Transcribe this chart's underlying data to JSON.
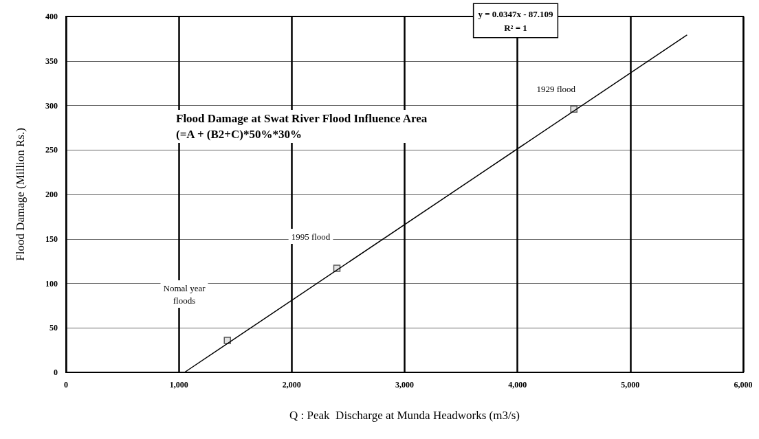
{
  "chart_data": {
    "type": "scatter",
    "title": "Flood Damage at Swat River Flood Influence Area",
    "subtitle": "(=A + (B2+C)*50%*30%",
    "xlabel": "Q : Peak  Discharge at Munda Headworks (m3/s)",
    "ylabel": "Flood Damage (Million Rs.)",
    "series": [
      {
        "x": [
          1430,
          2400,
          4500
        ],
        "values": [
          36,
          117,
          296
        ],
        "color": "#333333",
        "marker": "square"
      },
      {
        "type": "line",
        "x": [
          1050,
          5500
        ],
        "values": [
          0,
          379
        ],
        "color": "#000000",
        "marker": "none",
        "line_style": "solid"
      }
    ],
    "annotations": [
      "Nomal year\nfloods",
      "1995 flood",
      {
        "text": "1929 flood",
        "x": 4500,
        "y": 296
      },
      "y = 0.0347x - 87.109\nR² = 1"
    ],
    "xlim": [
      0,
      6000
    ],
    "xticks": [
      {
        "value": 0,
        "label": "0"
      },
      {
        "value": 1000,
        "label": "1,000"
      },
      {
        "value": 2000,
        "label": "2,000"
      },
      {
        "value": 3000,
        "label": "3,000"
      },
      {
        "value": 4000,
        "label": "4,000"
      },
      {
        "value": 5000,
        "label": "5,000"
      },
      {
        "value": 6000,
        "label": "6,000"
      }
    ],
    "ylim": [
      0,
      400
    ],
    "yticks": [
      0,
      50,
      100,
      150,
      200,
      250,
      300,
      350,
      400
    ],
    "grid": true
  }
}
